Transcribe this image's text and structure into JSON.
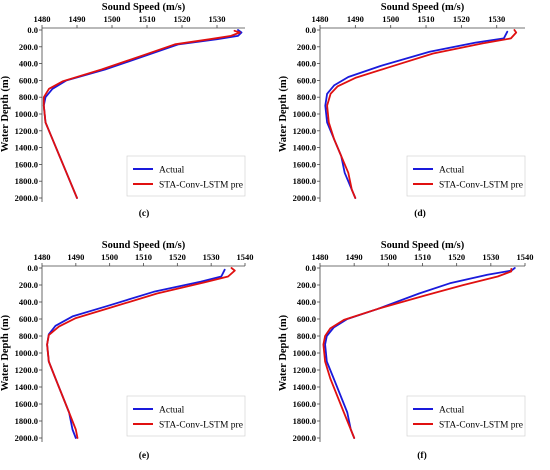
{
  "charts": [
    {
      "panel_label": "(c)",
      "type": "line",
      "xlabel": "Sound Speed (m/s)",
      "ylabel": "Water Depth (m)",
      "x_ticks": [
        1480,
        1490,
        1500,
        1510,
        1520,
        1530
      ],
      "xlim": [
        1480,
        1538
      ],
      "y_ticks": [
        "0.0",
        "200.0",
        "400.0",
        "600.0",
        "800.0",
        "1000.0",
        "1200.0",
        "1400.0",
        "1600.0",
        "1800.0",
        "2000.0"
      ],
      "ylim": [
        2000,
        0
      ],
      "legend": [
        "Actual",
        "STA-Conv-LSTM pre"
      ],
      "legend_position": "bottom-right",
      "series": [
        {
          "name": "Actual",
          "color": "#1a1adb",
          "points": [
            [
              1536,
              0
            ],
            [
              1537,
              30
            ],
            [
              1536,
              70
            ],
            [
              1530,
              110
            ],
            [
              1519,
              170
            ],
            [
              1510,
              300
            ],
            [
              1498,
              470
            ],
            [
              1487,
              600
            ],
            [
              1483,
              700
            ],
            [
              1481,
              800
            ],
            [
              1480.5,
              900
            ],
            [
              1481,
              1100
            ],
            [
              1483,
              1300
            ],
            [
              1485,
              1500
            ],
            [
              1487,
              1700
            ],
            [
              1489,
              1900
            ],
            [
              1490,
              2000
            ]
          ]
        },
        {
          "name": "STA-Conv-LSTM pre",
          "color": "#e01010",
          "points": [
            [
              1535,
              10
            ],
            [
              1536.5,
              30
            ],
            [
              1534,
              70
            ],
            [
              1528,
              110
            ],
            [
              1518,
              170
            ],
            [
              1509,
              300
            ],
            [
              1497,
              470
            ],
            [
              1486,
              610
            ],
            [
              1482,
              700
            ],
            [
              1480.5,
              800
            ],
            [
              1480.5,
              900
            ],
            [
              1481,
              1100
            ],
            [
              1483,
              1300
            ],
            [
              1485,
              1500
            ],
            [
              1487,
              1700
            ],
            [
              1489,
              1900
            ],
            [
              1490,
              2000
            ]
          ]
        }
      ]
    },
    {
      "panel_label": "(d)",
      "type": "line",
      "xlabel": "Sound Speed (m/s)",
      "ylabel": "Water Depth (m)",
      "x_ticks": [
        1480,
        1490,
        1500,
        1510,
        1520,
        1530
      ],
      "xlim": [
        1480,
        1538
      ],
      "y_ticks": [
        "0.0",
        "200.0",
        "400.0",
        "600.0",
        "800.0",
        "1000.0",
        "1200.0",
        "1400.0",
        "1600.0",
        "1800.0",
        "2000.0"
      ],
      "ylim": [
        2000,
        0
      ],
      "legend": [
        "Actual",
        "STA-Conv-LSTM pre"
      ],
      "legend_position": "bottom-right",
      "series": [
        {
          "name": "Actual",
          "color": "#1a1adb",
          "points": [
            [
              1533,
              20
            ],
            [
              1532,
              100
            ],
            [
              1524,
              150
            ],
            [
              1511,
              260
            ],
            [
              1497,
              430
            ],
            [
              1488,
              560
            ],
            [
              1484,
              660
            ],
            [
              1482,
              760
            ],
            [
              1481.5,
              900
            ],
            [
              1482,
              1100
            ],
            [
              1484,
              1300
            ],
            [
              1486,
              1500
            ],
            [
              1487,
              1700
            ],
            [
              1489,
              1900
            ],
            [
              1490,
              2000
            ]
          ]
        },
        {
          "name": "STA-Conv-LSTM pre",
          "color": "#e01010",
          "points": [
            [
              1535,
              0
            ],
            [
              1535.5,
              30
            ],
            [
              1534,
              100
            ],
            [
              1526,
              160
            ],
            [
              1512,
              280
            ],
            [
              1499,
              450
            ],
            [
              1490,
              570
            ],
            [
              1485,
              670
            ],
            [
              1483,
              760
            ],
            [
              1482,
              900
            ],
            [
              1482.5,
              1100
            ],
            [
              1484,
              1300
            ],
            [
              1486,
              1500
            ],
            [
              1488,
              1700
            ],
            [
              1489,
              1900
            ],
            [
              1490,
              2000
            ]
          ]
        }
      ]
    },
    {
      "panel_label": "(e)",
      "type": "line",
      "xlabel": "Sound Speed (m/s)",
      "ylabel": "Water Depth (m)",
      "x_ticks": [
        1480,
        1490,
        1500,
        1510,
        1520,
        1530,
        1540
      ],
      "xlim": [
        1480,
        1540
      ],
      "y_ticks": [
        "0.0",
        "200.0",
        "400.0",
        "600.0",
        "800.0",
        "1000.0",
        "1200.0",
        "1400.0",
        "1600.0",
        "1800.0",
        "2000.0"
      ],
      "ylim": [
        2000,
        0
      ],
      "legend": [
        "Actual",
        "STA-Conv-LSTM pre"
      ],
      "legend_position": "bottom-right",
      "series": [
        {
          "name": "Actual",
          "color": "#1a1adb",
          "points": [
            [
              1534,
              20
            ],
            [
              1533,
              100
            ],
            [
              1527,
              160
            ],
            [
              1513,
              280
            ],
            [
              1499,
              450
            ],
            [
              1489,
              570
            ],
            [
              1484,
              680
            ],
            [
              1482,
              780
            ],
            [
              1481.5,
              900
            ],
            [
              1482,
              1100
            ],
            [
              1484,
              1300
            ],
            [
              1486,
              1500
            ],
            [
              1488,
              1700
            ],
            [
              1489,
              1900
            ],
            [
              1490,
              2000
            ]
          ]
        },
        {
          "name": "STA-Conv-LSTM pre",
          "color": "#e01010",
          "points": [
            [
              1536,
              0
            ],
            [
              1537,
              30
            ],
            [
              1535,
              100
            ],
            [
              1528,
              170
            ],
            [
              1514,
              300
            ],
            [
              1500,
              470
            ],
            [
              1490,
              590
            ],
            [
              1485,
              690
            ],
            [
              1482,
              790
            ],
            [
              1481.5,
              900
            ],
            [
              1482,
              1100
            ],
            [
              1484,
              1300
            ],
            [
              1486,
              1500
            ],
            [
              1488,
              1700
            ],
            [
              1490,
              1900
            ],
            [
              1490.5,
              2000
            ]
          ]
        }
      ]
    },
    {
      "panel_label": "(f)",
      "type": "line",
      "xlabel": "Sound Speed (m/s)",
      "ylabel": "Water Depth (m)",
      "x_ticks": [
        1480,
        1490,
        1500,
        1510,
        1520,
        1530,
        1540
      ],
      "xlim": [
        1480,
        1540
      ],
      "y_ticks": [
        "0.0",
        "200.0",
        "400.0",
        "600.0",
        "800.0",
        "1000.0",
        "1200.0",
        "1400.0",
        "1600.0",
        "1800.0",
        "2000.0"
      ],
      "ylim": [
        2000,
        0
      ],
      "legend": [
        "Actual",
        "STA-Conv-LSTM pre"
      ],
      "legend_position": "bottom-right",
      "series": [
        {
          "name": "Actual",
          "color": "#1a1adb",
          "points": [
            [
              1537,
              0
            ],
            [
              1536,
              30
            ],
            [
              1529,
              80
            ],
            [
              1518,
              180
            ],
            [
              1509,
              300
            ],
            [
              1497,
              480
            ],
            [
              1488,
              600
            ],
            [
              1484,
              700
            ],
            [
              1482,
              800
            ],
            [
              1481.5,
              900
            ],
            [
              1482,
              1100
            ],
            [
              1484,
              1300
            ],
            [
              1486,
              1500
            ],
            [
              1488,
              1700
            ],
            [
              1489,
              1900
            ],
            [
              1490,
              2000
            ]
          ]
        },
        {
          "name": "STA-Conv-LSTM pre",
          "color": "#e01010",
          "points": [
            [
              1536,
              10
            ],
            [
              1536,
              40
            ],
            [
              1532,
              100
            ],
            [
              1522,
              200
            ],
            [
              1511,
              320
            ],
            [
              1497,
              480
            ],
            [
              1487,
              610
            ],
            [
              1483,
              710
            ],
            [
              1481.5,
              800
            ],
            [
              1481,
              900
            ],
            [
              1481.5,
              1100
            ],
            [
              1483,
              1300
            ],
            [
              1485,
              1500
            ],
            [
              1487,
              1700
            ],
            [
              1489,
              1900
            ],
            [
              1490,
              2000
            ]
          ]
        }
      ]
    }
  ]
}
